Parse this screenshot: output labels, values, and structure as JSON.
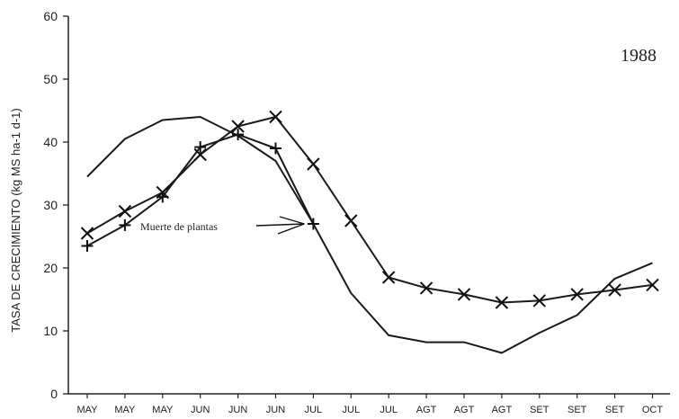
{
  "chart_data": {
    "type": "line",
    "year_label": "1988",
    "ylabel": "TASA DE CRECIMIENTO (kg MS ha-1 d-1)",
    "xlabel": "",
    "ylim": [
      0,
      60
    ],
    "yticks": [
      0,
      10,
      20,
      30,
      40,
      50,
      60
    ],
    "categories": [
      "MAY",
      "MAY",
      "MAY",
      "JUN",
      "JUN",
      "JUN",
      "JUL",
      "JUL",
      "JUL",
      "AGT",
      "AGT",
      "AGT",
      "SET",
      "SET",
      "SET",
      "OCT"
    ],
    "annotation": "Muerte de plantas",
    "series": [
      {
        "marker": "none",
        "values": [
          34.5,
          40.5,
          43.5,
          44,
          41,
          37,
          27,
          16,
          9.3,
          8.2,
          8.2,
          6.5,
          9.7,
          12.5,
          18.3,
          20.8
        ]
      },
      {
        "marker": "x",
        "values": [
          25.5,
          29,
          32,
          38,
          42.5,
          44,
          36.5,
          27.5,
          18.5,
          16.8,
          15.8,
          14.5,
          14.8,
          15.8,
          16.5,
          17.3
        ]
      },
      {
        "marker": "plus",
        "values": [
          23.5,
          26.8,
          31.3,
          39.2,
          41.2,
          39,
          27,
          null,
          null,
          null,
          null,
          null,
          null,
          null,
          null,
          null
        ]
      }
    ]
  }
}
